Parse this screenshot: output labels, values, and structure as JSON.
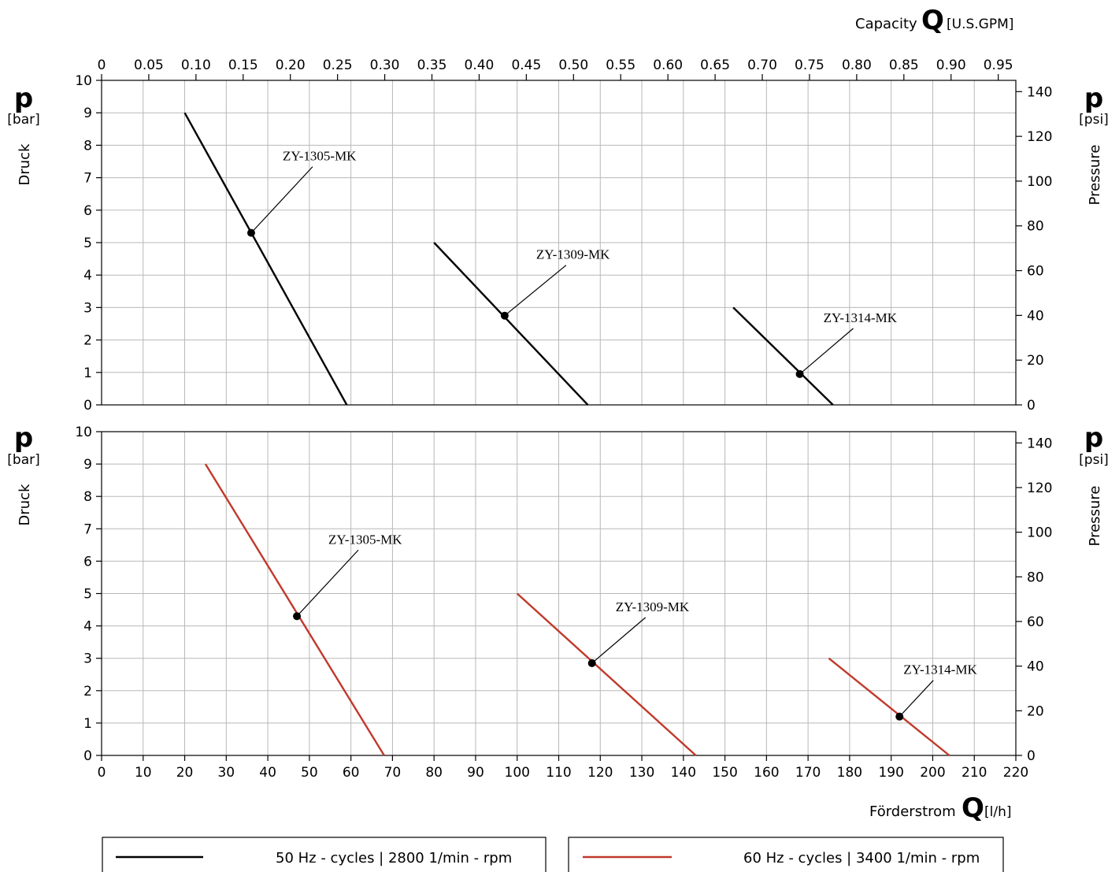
{
  "header": {
    "top_axis_label": "Capacity",
    "top_axis_symbol": "Q",
    "top_axis_unit": "[U.S.GPM]",
    "bottom_axis_label": "Förderstrom",
    "bottom_axis_symbol": "Q",
    "bottom_axis_unit": "[l/h]"
  },
  "panels_common": {
    "left_symbol": "p",
    "left_unit": "[bar]",
    "left_title": "Druck",
    "right_symbol": "p",
    "right_unit": "[psi]",
    "right_title": "Pressure"
  },
  "chart_data": [
    {
      "type": "line",
      "panel": "top",
      "x_unit": "l/h",
      "xlim": [
        0,
        220
      ],
      "x_ticks": [
        0,
        10,
        20,
        30,
        40,
        50,
        60,
        70,
        80,
        90,
        100,
        110,
        120,
        130,
        140,
        150,
        160,
        170,
        180,
        190,
        200,
        210,
        220
      ],
      "secondary_x_unit": "U.S.GPM",
      "secondary_x_ticks": [
        "0",
        "0.05",
        "0.10",
        "0.15",
        "0.20",
        "0.25",
        "0.30",
        "0.35",
        "0.40",
        "0.45",
        "0.50",
        "0.55",
        "0.60",
        "0.65",
        "0.70",
        "0.75",
        "0.80",
        "0.85",
        "0.90",
        "0.95"
      ],
      "ylim": [
        0,
        10
      ],
      "y_ticks": [
        0,
        1,
        2,
        3,
        4,
        5,
        6,
        7,
        8,
        9,
        10
      ],
      "secondary_y_unit": "psi",
      "secondary_y_ticks": [
        0,
        20,
        40,
        60,
        80,
        100,
        120,
        140
      ],
      "grid": true,
      "line_color": "#000000",
      "series": [
        {
          "name": "ZY-1305-MK",
          "x": [
            20,
            59
          ],
          "y": [
            9,
            0
          ],
          "marker": [
            36,
            5.3
          ]
        },
        {
          "name": "ZY-1309-MK",
          "x": [
            80,
            117
          ],
          "y": [
            5,
            0
          ],
          "marker": [
            97,
            2.75
          ]
        },
        {
          "name": "ZY-1314-MK",
          "x": [
            152,
            176
          ],
          "y": [
            3,
            0
          ],
          "marker": [
            168,
            0.95
          ]
        }
      ]
    },
    {
      "type": "line",
      "panel": "bottom",
      "x_unit": "l/h",
      "xlim": [
        0,
        220
      ],
      "x_ticks": [
        0,
        10,
        20,
        30,
        40,
        50,
        60,
        70,
        80,
        90,
        100,
        110,
        120,
        130,
        140,
        150,
        160,
        170,
        180,
        190,
        200,
        210,
        220
      ],
      "ylim": [
        0,
        10
      ],
      "y_ticks": [
        0,
        1,
        2,
        3,
        4,
        5,
        6,
        7,
        8,
        9,
        10
      ],
      "secondary_y_unit": "psi",
      "secondary_y_ticks": [
        0,
        20,
        40,
        60,
        80,
        100,
        120,
        140
      ],
      "grid": true,
      "line_color": "#c0392b",
      "series": [
        {
          "name": "ZY-1305-MK",
          "x": [
            25,
            68
          ],
          "y": [
            9,
            0
          ],
          "marker": [
            47,
            4.3
          ]
        },
        {
          "name": "ZY-1309-MK",
          "x": [
            100,
            143
          ],
          "y": [
            5,
            0
          ],
          "marker": [
            118,
            2.85
          ]
        },
        {
          "name": "ZY-1314-MK",
          "x": [
            175,
            204
          ],
          "y": [
            3,
            0
          ],
          "marker": [
            192,
            1.2
          ]
        }
      ]
    }
  ],
  "legend": {
    "items": [
      {
        "label": "50 Hz - cycles | 2800 1/min - rpm",
        "color": "#000000"
      },
      {
        "label": "60 Hz - cycles | 3400 1/min - rpm",
        "color": "#c0392b"
      }
    ]
  }
}
